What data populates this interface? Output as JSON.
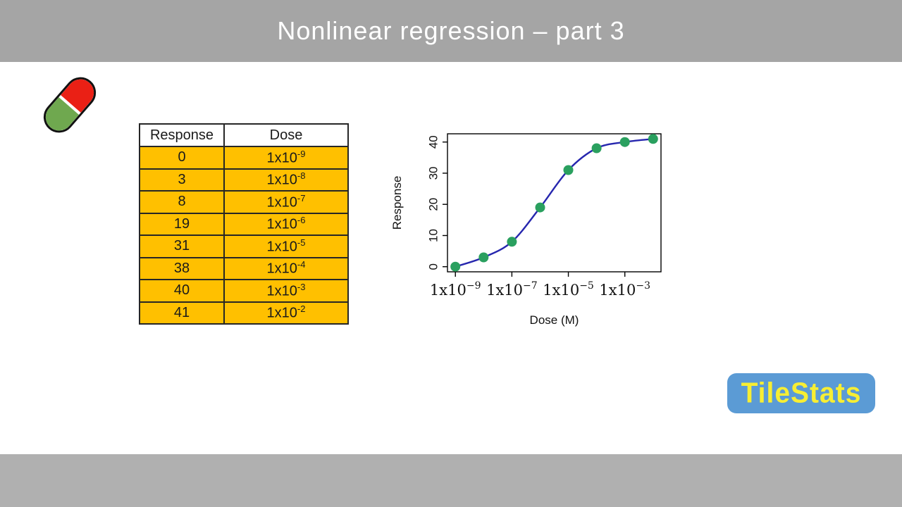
{
  "colors": {
    "bar-top": "#a5a5a5",
    "bar-bottom": "#b0b0b0",
    "cell-orange": "#ffc000",
    "pill-red": "#ea2015",
    "pill-green": "#6fa84f",
    "logo-blue": "#5b9bd5",
    "logo-yellow": "#f7ee33",
    "curve-blue": "#2626ae",
    "point-green": "#2aa05f"
  },
  "header": {
    "title": "Nonlinear regression – part 3"
  },
  "table": {
    "headers": [
      "Response",
      "Dose"
    ],
    "rows": [
      {
        "response": "0",
        "dose_base": "1x10",
        "dose_exp": "-9"
      },
      {
        "response": "3",
        "dose_base": "1x10",
        "dose_exp": "-8"
      },
      {
        "response": "8",
        "dose_base": "1x10",
        "dose_exp": "-7"
      },
      {
        "response": "19",
        "dose_base": "1x10",
        "dose_exp": "-6"
      },
      {
        "response": "31",
        "dose_base": "1x10",
        "dose_exp": "-5"
      },
      {
        "response": "38",
        "dose_base": "1x10",
        "dose_exp": "-4"
      },
      {
        "response": "40",
        "dose_base": "1x10",
        "dose_exp": "-3"
      },
      {
        "response": "41",
        "dose_base": "1x10",
        "dose_exp": "-2"
      }
    ]
  },
  "chart_data": {
    "type": "scatter",
    "title": "",
    "xlabel": "Dose (M)",
    "ylabel": "Response",
    "x_scale": "log10",
    "x_exponents": [
      -9,
      -8,
      -7,
      -6,
      -5,
      -4,
      -3,
      -2
    ],
    "responses": [
      0,
      3,
      8,
      19,
      31,
      38,
      40,
      41
    ],
    "has_fit_curve": true,
    "x_ticks": [
      {
        "exp": -9,
        "base": "1x10",
        "sup": "−9"
      },
      {
        "exp": -7,
        "base": "1x10",
        "sup": "−7"
      },
      {
        "exp": -5,
        "base": "1x10",
        "sup": "−5"
      },
      {
        "exp": -3,
        "base": "1x10",
        "sup": "−3"
      }
    ],
    "y_ticks": [
      0,
      10,
      20,
      30,
      40
    ],
    "xlim_log": [
      -9,
      -2
    ],
    "ylim": [
      0,
      41
    ],
    "grid": false,
    "legend_position": "none",
    "line_color": "#2626ae",
    "point_color": "#2aa05f"
  },
  "logo": {
    "text": "TileStats"
  }
}
